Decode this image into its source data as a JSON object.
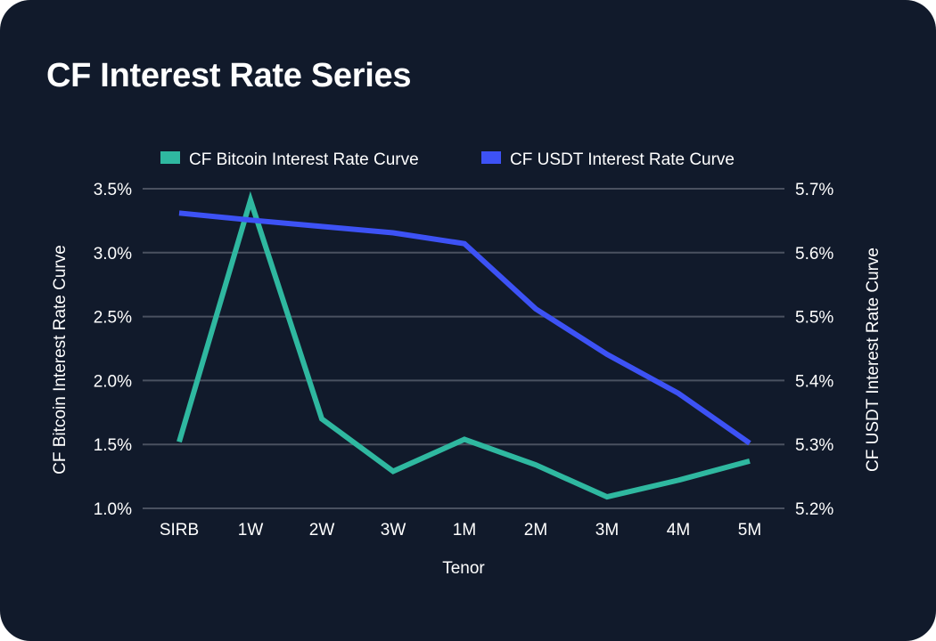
{
  "colors": {
    "background": "#111a2b",
    "grid": "#4a5160",
    "text": "#ffffff",
    "series_btc": "#2fb8a0",
    "series_usdt": "#3d52f5"
  },
  "chart_data": {
    "type": "line",
    "title": "CF Interest Rate Series",
    "xlabel": "Tenor",
    "ylabel_left": "CF Bitcoin Interest Rate Curve",
    "ylabel_right": "CF USDT Interest Rate Curve",
    "categories": [
      "SIRB",
      "1W",
      "2W",
      "3W",
      "1M",
      "2M",
      "3M",
      "4M",
      "5M"
    ],
    "ylim_left": [
      1.0,
      3.5
    ],
    "ylim_right": [
      5.2,
      5.7
    ],
    "yticks_left": [
      "1.0%",
      "1.5%",
      "2.0%",
      "2.5%",
      "3.0%",
      "3.5%"
    ],
    "yticks_right": [
      "5.2%",
      "5.3%",
      "5.4%",
      "5.5%",
      "5.6%",
      "5.7%"
    ],
    "legend_position": "top-center",
    "grid": true,
    "series": [
      {
        "name": "CF Bitcoin Interest Rate Curve",
        "axis": "left",
        "color": "#2fb8a0",
        "values": [
          1.52,
          3.41,
          1.7,
          1.29,
          1.54,
          1.34,
          1.09,
          1.22,
          1.37
        ]
      },
      {
        "name": "CF USDT Interest Rate Curve",
        "axis": "right",
        "color": "#3d52f5",
        "values": [
          5.662,
          5.651,
          5.641,
          5.631,
          5.614,
          5.512,
          5.441,
          5.38,
          5.302
        ]
      }
    ]
  }
}
